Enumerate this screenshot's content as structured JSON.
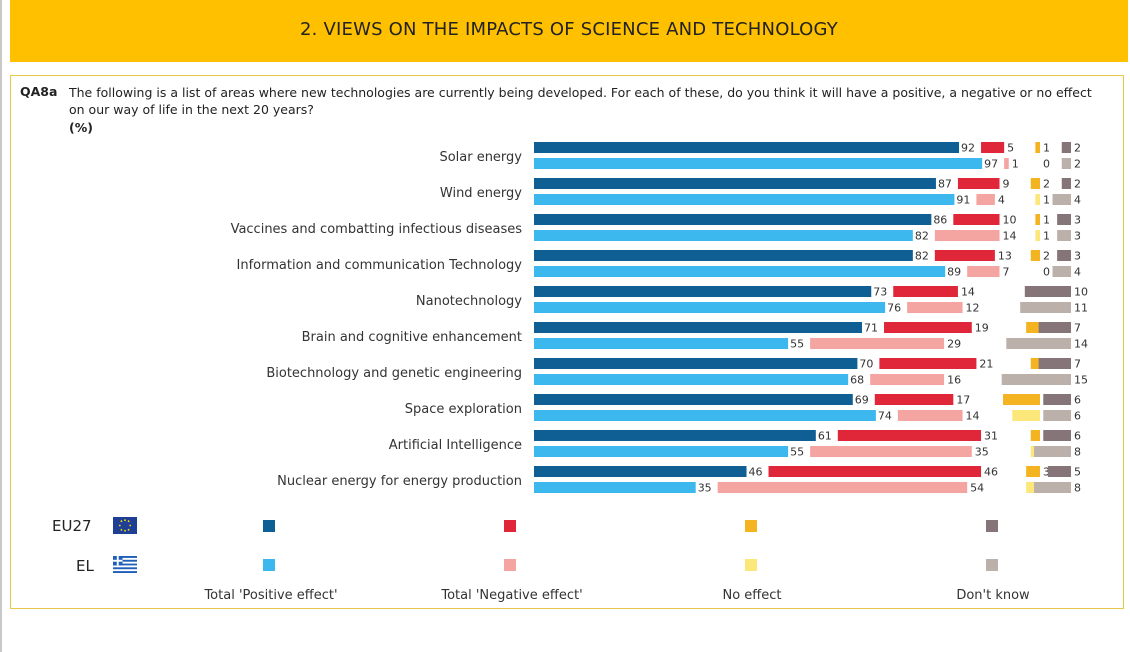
{
  "header": {
    "title": "2. VIEWS ON THE IMPACTS OF SCIENCE AND TECHNOLOGY"
  },
  "question": {
    "id": "QA8a",
    "text": "The following is a list of areas where new technologies are currently being developed. For each of these, do you think it will have a positive, a negative or no effect on our way of life in the next 20 years?",
    "unit": "(%)"
  },
  "colors": {
    "eu_positive": "#0f5f94",
    "el_positive": "#3db8ef",
    "eu_negative": "#e0273a",
    "el_negative": "#f4a5a1",
    "eu_noeffect": "#f4b421",
    "el_noeffect": "#fbe77a",
    "eu_dontknow": "#857478",
    "el_dontknow": "#bcb0ab",
    "banner": "#ffc000"
  },
  "legend": {
    "rows": [
      {
        "code": "EU27",
        "flag": "eu-flag-icon"
      },
      {
        "code": "EL",
        "flag": "greece-flag-icon"
      }
    ],
    "labels": [
      "Total 'Positive effect'",
      "Total 'Negative effect'",
      "No effect",
      "Don't know"
    ]
  },
  "chart_data": {
    "type": "bar",
    "orientation": "horizontal-stacked",
    "categories": [
      "Solar energy",
      "Wind energy",
      "Vaccines and combatting infectious diseases",
      "Information and communication Technology",
      "Nanotechnology",
      "Brain and cognitive enhancement",
      "Biotechnology and genetic engineering",
      "Space exploration",
      "Artificial Intelligence",
      "Nuclear energy for energy production"
    ],
    "groups": [
      "EU27",
      "EL"
    ],
    "series": [
      {
        "name": "Total 'Positive effect'",
        "EU27": [
          92,
          87,
          86,
          82,
          73,
          71,
          70,
          69,
          61,
          46
        ],
        "EL": [
          97,
          91,
          82,
          89,
          76,
          55,
          68,
          74,
          55,
          35
        ]
      },
      {
        "name": "Total 'Negative effect'",
        "EU27": [
          5,
          9,
          10,
          13,
          14,
          19,
          21,
          17,
          31,
          46
        ],
        "EL": [
          1,
          4,
          14,
          7,
          12,
          29,
          16,
          14,
          35,
          54
        ]
      },
      {
        "name": "No effect",
        "EU27": [
          1,
          2,
          1,
          2,
          3,
          3,
          2,
          8,
          2,
          3
        ],
        "EL": [
          0,
          1,
          1,
          0,
          1,
          2,
          1,
          6,
          2,
          3
        ]
      },
      {
        "name": "Don't know",
        "EU27": [
          2,
          2,
          3,
          3,
          10,
          7,
          7,
          6,
          6,
          5
        ],
        "EL": [
          2,
          4,
          3,
          4,
          11,
          14,
          15,
          6,
          8,
          8
        ]
      }
    ],
    "xlim": [
      0,
      100
    ]
  }
}
